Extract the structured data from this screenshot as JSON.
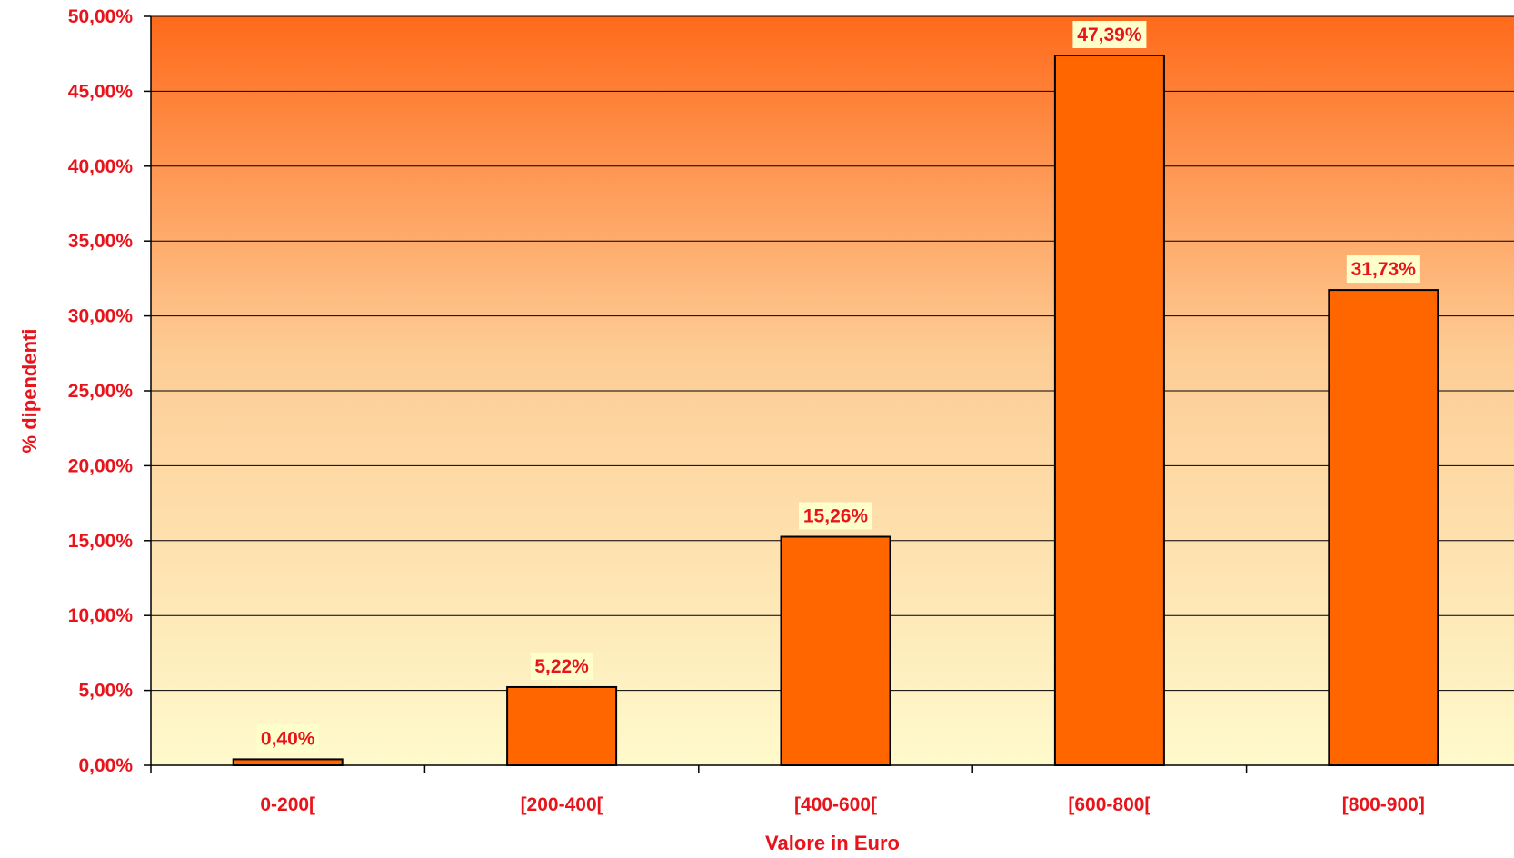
{
  "chart_data": {
    "type": "bar",
    "categories": [
      "0-200[",
      "[200-400[",
      "[400-600[",
      "[600-800[",
      "[800-900]"
    ],
    "values": [
      0.4,
      5.22,
      15.26,
      47.39,
      31.73
    ],
    "data_labels": [
      "0,40%",
      "5,22%",
      "15,26%",
      "47,39%",
      "31,73%"
    ],
    "ylim": [
      0,
      50
    ],
    "yticks": [
      0,
      5,
      10,
      15,
      20,
      25,
      30,
      35,
      40,
      45,
      50
    ],
    "ytick_labels": [
      "0,00%",
      "5,00%",
      "10,00%",
      "15,00%",
      "20,00%",
      "25,00%",
      "30,00%",
      "35,00%",
      "40,00%",
      "45,00%",
      "50,00%"
    ],
    "xlabel": "Valore in Euro",
    "ylabel": "% dipendenti",
    "grid": true,
    "legend": "none"
  },
  "colors": {
    "bar_fill": "#FF6600",
    "bar_stroke": "#000000",
    "text": "#E8141C",
    "label_bg": "#FFFFCC",
    "gradient_top": "#FF6A1A",
    "gradient_mid": "#FDCC95",
    "gradient_bottom": "#FFFACC",
    "gridline": "#000000"
  }
}
